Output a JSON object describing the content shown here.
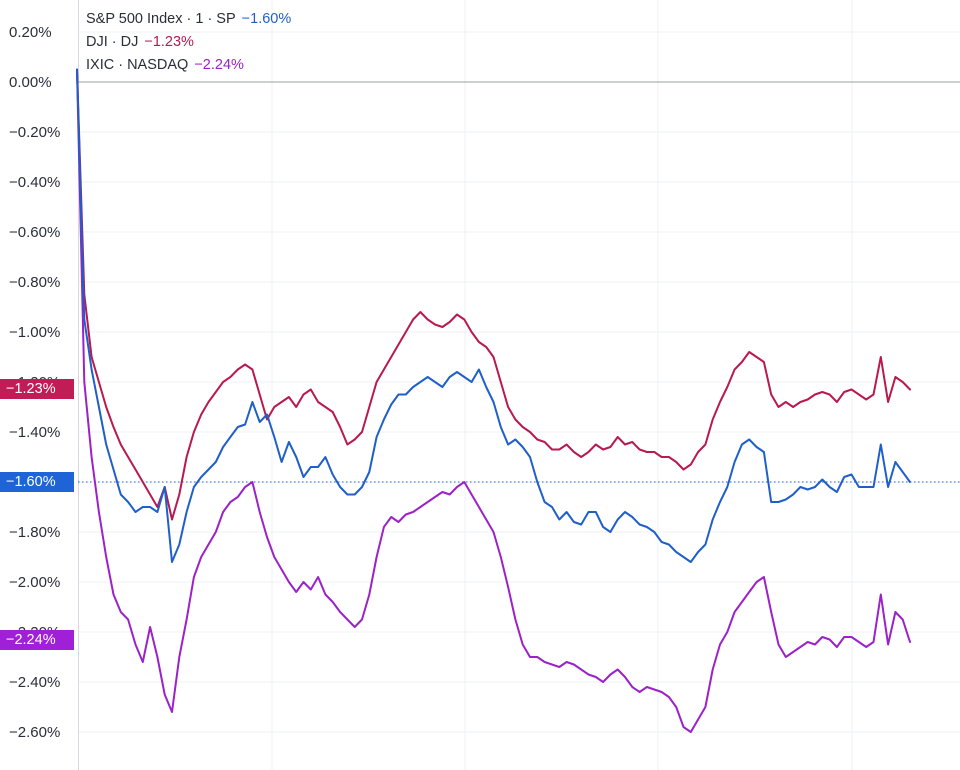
{
  "chart_data": {
    "type": "line",
    "y_unit": "%",
    "ylim": [
      -2.8,
      0.3
    ],
    "y_ticks": [
      0.2,
      0.0,
      -0.2,
      -0.4,
      -0.6,
      -0.8,
      -1.0,
      -1.2,
      -1.4,
      -1.6,
      -1.8,
      -2.0,
      -2.2,
      -2.4,
      -2.6
    ],
    "y_tick_labels": [
      "0.20%",
      "0.00%",
      "−0.20%",
      "−0.40%",
      "−0.60%",
      "−0.80%",
      "−1.00%",
      "−1.20%",
      "−1.40%",
      "−1.60%",
      "−1.80%",
      "−2.00%",
      "−2.20%",
      "−2.40%",
      "−2.60%"
    ],
    "grid": true,
    "legend_placement": "top-left",
    "series": [
      {
        "name": "S&P 500 Index · 1 · SP",
        "change_label": "−1.60%",
        "last_value_badge": "−1.60%",
        "color": "#1f5fc9",
        "values": [
          0.05,
          -0.95,
          -1.15,
          -1.3,
          -1.45,
          -1.55,
          -1.65,
          -1.68,
          -1.72,
          -1.7,
          -1.7,
          -1.72,
          -1.62,
          -1.92,
          -1.85,
          -1.72,
          -1.62,
          -1.58,
          -1.55,
          -1.52,
          -1.46,
          -1.42,
          -1.38,
          -1.37,
          -1.28,
          -1.36,
          -1.33,
          -1.42,
          -1.52,
          -1.44,
          -1.5,
          -1.58,
          -1.54,
          -1.54,
          -1.5,
          -1.57,
          -1.62,
          -1.65,
          -1.65,
          -1.62,
          -1.56,
          -1.42,
          -1.35,
          -1.29,
          -1.25,
          -1.25,
          -1.22,
          -1.2,
          -1.18,
          -1.2,
          -1.22,
          -1.18,
          -1.16,
          -1.18,
          -1.2,
          -1.15,
          -1.22,
          -1.28,
          -1.38,
          -1.45,
          -1.43,
          -1.46,
          -1.5,
          -1.6,
          -1.68,
          -1.7,
          -1.75,
          -1.72,
          -1.76,
          -1.77,
          -1.72,
          -1.72,
          -1.78,
          -1.8,
          -1.75,
          -1.72,
          -1.74,
          -1.77,
          -1.78,
          -1.8,
          -1.84,
          -1.85,
          -1.88,
          -1.9,
          -1.92,
          -1.88,
          -1.85,
          -1.75,
          -1.68,
          -1.62,
          -1.52,
          -1.45,
          -1.43,
          -1.46,
          -1.48,
          -1.68,
          -1.68,
          -1.67,
          -1.65,
          -1.62,
          -1.63,
          -1.62,
          -1.59,
          -1.62,
          -1.64,
          -1.58,
          -1.57,
          -1.62,
          -1.62,
          -1.62,
          -1.45,
          -1.62,
          -1.52,
          -1.56,
          -1.6
        ]
      },
      {
        "name": "DJI · DJ",
        "change_label": "−1.23%",
        "last_value_badge": "−1.23%",
        "color": "#b8194f",
        "values": [
          0.05,
          -0.85,
          -1.1,
          -1.2,
          -1.3,
          -1.38,
          -1.45,
          -1.5,
          -1.55,
          -1.6,
          -1.65,
          -1.7,
          -1.62,
          -1.75,
          -1.65,
          -1.5,
          -1.4,
          -1.33,
          -1.28,
          -1.24,
          -1.2,
          -1.18,
          -1.15,
          -1.13,
          -1.15,
          -1.25,
          -1.35,
          -1.3,
          -1.28,
          -1.26,
          -1.3,
          -1.25,
          -1.23,
          -1.28,
          -1.3,
          -1.32,
          -1.38,
          -1.45,
          -1.43,
          -1.4,
          -1.3,
          -1.2,
          -1.15,
          -1.1,
          -1.05,
          -1.0,
          -0.95,
          -0.92,
          -0.95,
          -0.97,
          -0.98,
          -0.96,
          -0.93,
          -0.95,
          -1.0,
          -1.04,
          -1.06,
          -1.1,
          -1.2,
          -1.3,
          -1.35,
          -1.38,
          -1.4,
          -1.43,
          -1.44,
          -1.47,
          -1.47,
          -1.45,
          -1.48,
          -1.5,
          -1.48,
          -1.45,
          -1.47,
          -1.46,
          -1.42,
          -1.45,
          -1.44,
          -1.47,
          -1.48,
          -1.48,
          -1.5,
          -1.5,
          -1.52,
          -1.55,
          -1.53,
          -1.48,
          -1.45,
          -1.35,
          -1.28,
          -1.22,
          -1.15,
          -1.12,
          -1.08,
          -1.1,
          -1.12,
          -1.25,
          -1.3,
          -1.28,
          -1.3,
          -1.28,
          -1.27,
          -1.25,
          -1.24,
          -1.25,
          -1.28,
          -1.24,
          -1.23,
          -1.25,
          -1.27,
          -1.25,
          -1.1,
          -1.28,
          -1.18,
          -1.2,
          -1.23
        ]
      },
      {
        "name": "IXIC · NASDAQ",
        "change_label": "−2.24%",
        "last_value_badge": "−2.24%",
        "color": "#9b22c8",
        "values": [
          0.05,
          -1.2,
          -1.5,
          -1.72,
          -1.9,
          -2.05,
          -2.12,
          -2.15,
          -2.25,
          -2.32,
          -2.18,
          -2.3,
          -2.45,
          -2.52,
          -2.3,
          -2.15,
          -1.98,
          -1.9,
          -1.85,
          -1.8,
          -1.72,
          -1.68,
          -1.66,
          -1.62,
          -1.6,
          -1.72,
          -1.82,
          -1.9,
          -1.95,
          -2.0,
          -2.04,
          -2.0,
          -2.03,
          -1.98,
          -2.05,
          -2.08,
          -2.12,
          -2.15,
          -2.18,
          -2.15,
          -2.05,
          -1.9,
          -1.78,
          -1.74,
          -1.76,
          -1.73,
          -1.72,
          -1.7,
          -1.68,
          -1.66,
          -1.64,
          -1.65,
          -1.62,
          -1.6,
          -1.65,
          -1.7,
          -1.75,
          -1.8,
          -1.9,
          -2.02,
          -2.15,
          -2.25,
          -2.3,
          -2.3,
          -2.32,
          -2.33,
          -2.34,
          -2.32,
          -2.33,
          -2.35,
          -2.37,
          -2.38,
          -2.4,
          -2.37,
          -2.35,
          -2.38,
          -2.42,
          -2.44,
          -2.42,
          -2.43,
          -2.44,
          -2.46,
          -2.5,
          -2.58,
          -2.6,
          -2.55,
          -2.5,
          -2.35,
          -2.25,
          -2.2,
          -2.12,
          -2.08,
          -2.04,
          -2.0,
          -1.98,
          -2.12,
          -2.25,
          -2.3,
          -2.28,
          -2.26,
          -2.24,
          -2.25,
          -2.22,
          -2.23,
          -2.26,
          -2.22,
          -2.22,
          -2.24,
          -2.26,
          -2.24,
          -2.05,
          -2.25,
          -2.12,
          -2.15,
          -2.24
        ]
      }
    ],
    "reference_line_value": -1.6
  }
}
